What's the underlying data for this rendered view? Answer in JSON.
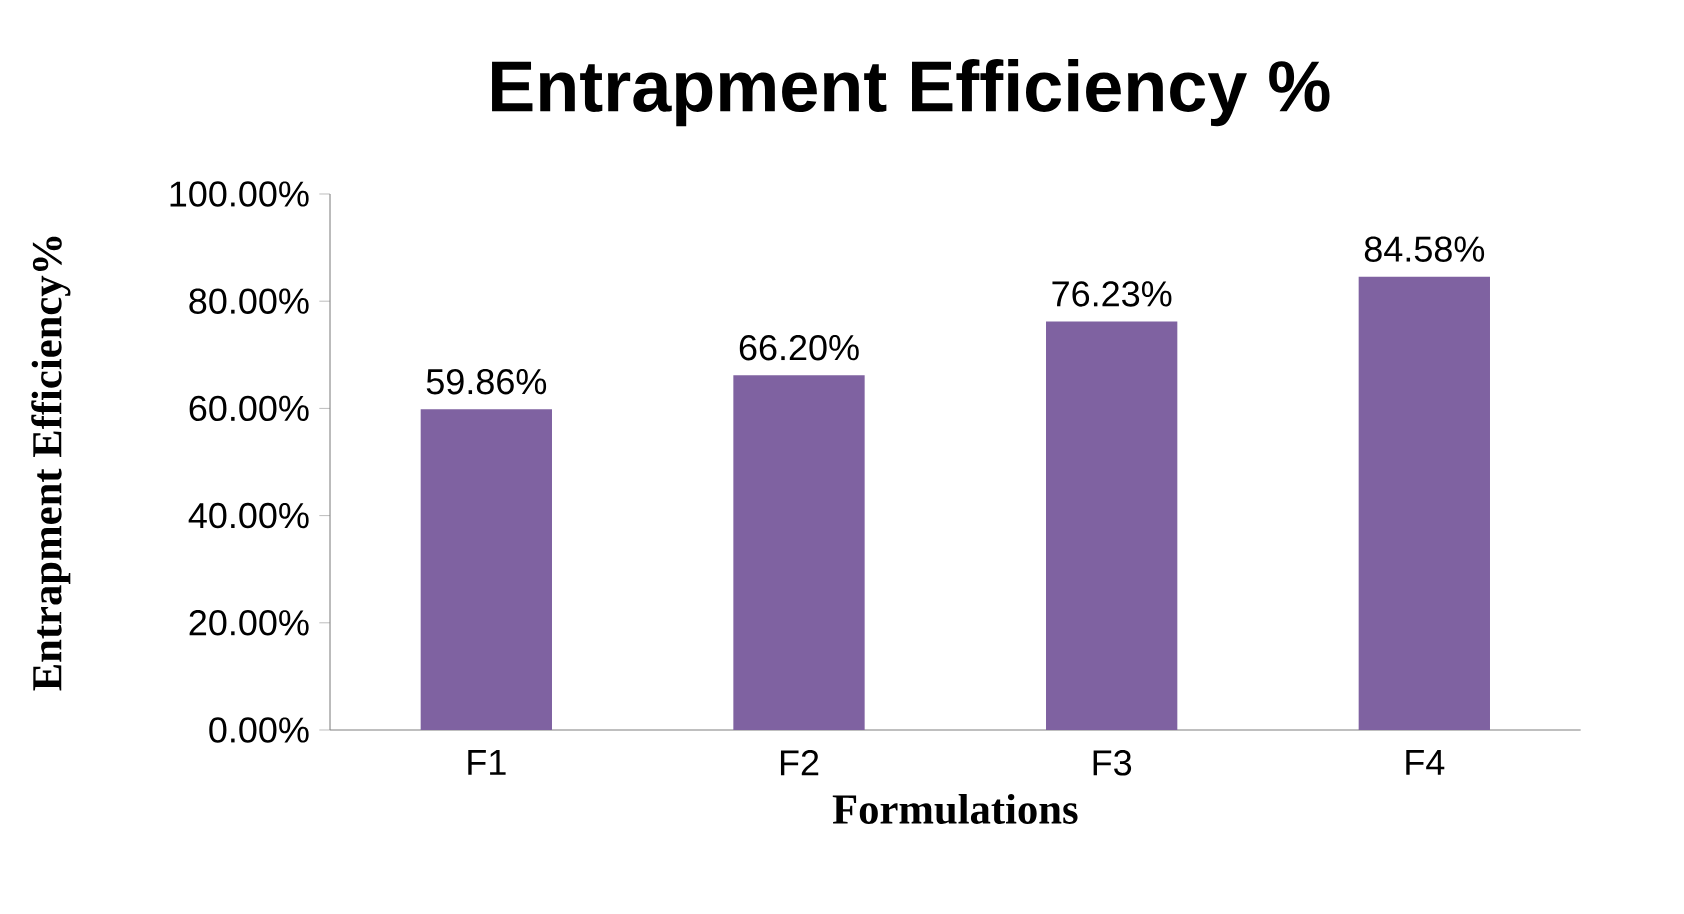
{
  "chart_data": {
    "type": "bar",
    "title": "Entrapment Efficiency %",
    "xlabel": "Formulations",
    "ylabel": "Entrapment Efficiency%",
    "categories": [
      "F1",
      "F2",
      "F3",
      "F4"
    ],
    "values": [
      59.86,
      66.2,
      76.23,
      84.58
    ],
    "value_labels": [
      "59.86%",
      "66.20%",
      "76.23%",
      "84.58%"
    ],
    "color": "#7f62a1",
    "ylim": [
      0,
      100
    ],
    "yticks": [
      {
        "value": 0,
        "label": "0.00%"
      },
      {
        "value": 20,
        "label": "20.00%"
      },
      {
        "value": 40,
        "label": "40.00%"
      },
      {
        "value": 60,
        "label": "60.00%"
      },
      {
        "value": 80,
        "label": "80.00%"
      },
      {
        "value": 100,
        "label": "100.00%"
      }
    ]
  }
}
